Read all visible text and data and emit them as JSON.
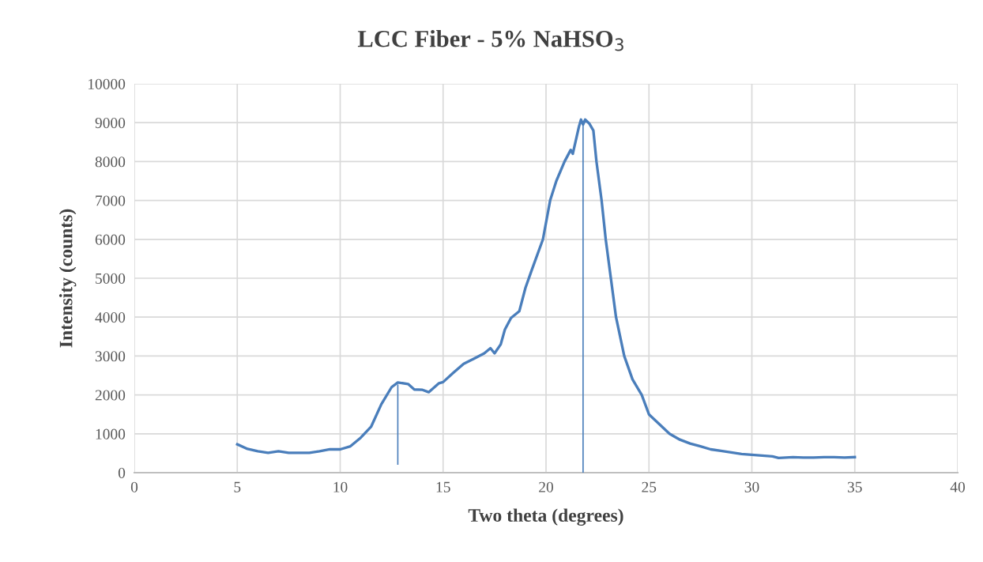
{
  "chart_data": {
    "type": "line",
    "title": "LCC Fiber - 5% NaHSO$_{3}$",
    "xlabel": "Two theta (degrees)",
    "ylabel": "Intensity (counts)",
    "series": [
      {
        "color": "#4a7ebb",
        "x": [
          5,
          5.5,
          6,
          6.5,
          7,
          7.5,
          8,
          8.5,
          9,
          9.5,
          10,
          10.5,
          11,
          11.5,
          12,
          12.5,
          12.8,
          13.3,
          13.6,
          14,
          14.3,
          14.8,
          15,
          15.5,
          16,
          16.5,
          17,
          17.3,
          17.5,
          17.8,
          18,
          18.3,
          18.7,
          19,
          19.3,
          19.85,
          20.2,
          20.5,
          20.9,
          21.2,
          21.3,
          21.6,
          21.7,
          21.8,
          21.9,
          22.1,
          22.3,
          22.45,
          22.7,
          22.9,
          23.15,
          23.4,
          23.8,
          24.2,
          24.65,
          25,
          25.5,
          26,
          26.5,
          27,
          27.5,
          28,
          28.5,
          29,
          29.5,
          30,
          30.5,
          31,
          31.3,
          32,
          32.5,
          33,
          33.5,
          34,
          34.5,
          35
        ],
        "values": [
          730,
          610,
          550,
          510,
          550,
          510,
          510,
          510,
          550,
          600,
          600,
          680,
          900,
          1180,
          1760,
          2200,
          2320,
          2280,
          2140,
          2130,
          2070,
          2300,
          2330,
          2570,
          2800,
          2930,
          3070,
          3200,
          3070,
          3300,
          3680,
          3980,
          4150,
          4750,
          5200,
          6000,
          7000,
          7500,
          8000,
          8300,
          8200,
          8900,
          9080,
          8950,
          9080,
          8980,
          8800,
          8000,
          7000,
          6000,
          5000,
          4000,
          3000,
          2400,
          2000,
          1500,
          1250,
          1000,
          850,
          750,
          680,
          600,
          560,
          520,
          480,
          460,
          440,
          420,
          380,
          400,
          390,
          390,
          400,
          400,
          390,
          400
        ]
      },
      {
        "color": "#4a7ebb",
        "x": [
          12.8,
          12.8
        ],
        "values": [
          2250,
          220
        ]
      },
      {
        "color": "#4a7ebb",
        "x": [
          21.8,
          21.8
        ],
        "values": [
          9000,
          0
        ]
      }
    ],
    "xlim": [
      0,
      40
    ],
    "xticks": [
      0,
      5,
      10,
      15,
      20,
      25,
      30,
      35,
      40
    ],
    "ylim": [
      0,
      10000
    ],
    "yticks": [
      0,
      1000,
      2000,
      3000,
      4000,
      5000,
      6000,
      7000,
      8000,
      9000,
      10000
    ],
    "grid": true,
    "marker": "none",
    "line_style": "solid"
  }
}
